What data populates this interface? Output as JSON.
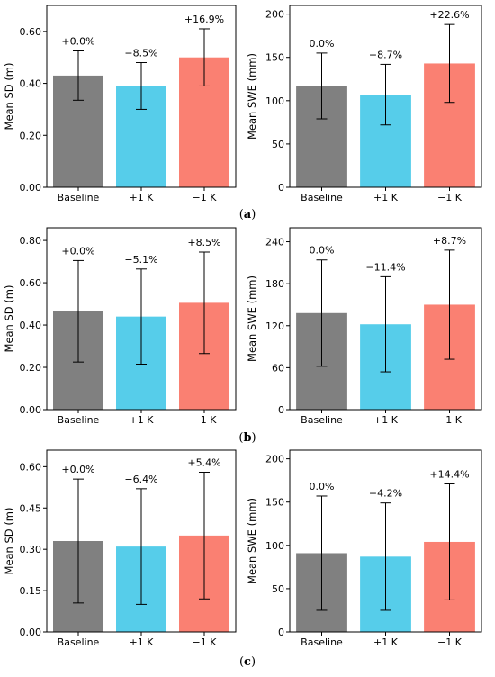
{
  "colors": {
    "baseline": "#808080",
    "plus1k": "#56cdea",
    "minus1k": "#fa8072"
  },
  "panel_labels": [
    {
      "open": "(",
      "letter": "a",
      "close": ")"
    },
    {
      "open": "(",
      "letter": "b",
      "close": ")"
    },
    {
      "open": "(",
      "letter": "c",
      "close": ")"
    }
  ],
  "chart_data": [
    {
      "type": "bar",
      "ylabel": "Mean SD (m)",
      "categories": [
        "Baseline",
        "+1 K",
        "−1 K"
      ],
      "values": [
        0.43,
        0.39,
        0.5
      ],
      "errors": [
        0.095,
        0.09,
        0.11
      ],
      "annotations": [
        "+0.0%",
        "−8.5%",
        "+16.9%"
      ],
      "ylim": [
        0,
        0.7
      ],
      "yticks": [
        0,
        0.2,
        0.4,
        0.6
      ],
      "ytick_labels": [
        "0.00",
        "0.20",
        "0.40",
        "0.60"
      ]
    },
    {
      "type": "bar",
      "ylabel": "Mean SWE (mm)",
      "categories": [
        "Baseline",
        "+1 K",
        "−1 K"
      ],
      "values": [
        117,
        107,
        143
      ],
      "errors": [
        38,
        35,
        45
      ],
      "annotations": [
        "0.0%",
        "−8.7%",
        "+22.6%"
      ],
      "ylim": [
        0,
        210
      ],
      "yticks": [
        0,
        50,
        100,
        150,
        200
      ],
      "ytick_labels": [
        "0",
        "50",
        "100",
        "150",
        "200"
      ]
    },
    {
      "type": "bar",
      "ylabel": "Mean SD (m)",
      "categories": [
        "Baseline",
        "+1 K",
        "−1 K"
      ],
      "values": [
        0.465,
        0.44,
        0.505
      ],
      "errors": [
        0.24,
        0.225,
        0.24
      ],
      "annotations": [
        "+0.0%",
        "−5.1%",
        "+8.5%"
      ],
      "ylim": [
        0,
        0.86
      ],
      "yticks": [
        0,
        0.2,
        0.4,
        0.6,
        0.8
      ],
      "ytick_labels": [
        "0.00",
        "0.20",
        "0.40",
        "0.60",
        "0.80"
      ]
    },
    {
      "type": "bar",
      "ylabel": "Mean SWE (mm)",
      "categories": [
        "Baseline",
        "+1 K",
        "−1 K"
      ],
      "values": [
        138,
        122,
        150
      ],
      "errors": [
        76,
        68,
        78
      ],
      "annotations": [
        "0.0%",
        "−11.4%",
        "+8.7%"
      ],
      "ylim": [
        0,
        260
      ],
      "yticks": [
        0,
        60,
        120,
        180,
        240
      ],
      "ytick_labels": [
        "0",
        "60",
        "120",
        "180",
        "240"
      ]
    },
    {
      "type": "bar",
      "ylabel": "Mean SD (m)",
      "categories": [
        "Baseline",
        "+1 K",
        "−1 K"
      ],
      "values": [
        0.33,
        0.31,
        0.35
      ],
      "errors": [
        0.225,
        0.21,
        0.23
      ],
      "annotations": [
        "+0.0%",
        "−6.4%",
        "+5.4%"
      ],
      "ylim": [
        0,
        0.66
      ],
      "yticks": [
        0,
        0.15,
        0.3,
        0.45,
        0.6
      ],
      "ytick_labels": [
        "0.00",
        "0.15",
        "0.30",
        "0.45",
        "0.60"
      ]
    },
    {
      "type": "bar",
      "ylabel": "Mean SWE (mm)",
      "categories": [
        "Baseline",
        "+1 K",
        "−1 K"
      ],
      "values": [
        91,
        87,
        104
      ],
      "errors": [
        66,
        62,
        67
      ],
      "annotations": [
        "0.0%",
        "−4.2%",
        "+14.4%"
      ],
      "ylim": [
        0,
        210
      ],
      "yticks": [
        0,
        50,
        100,
        150,
        200
      ],
      "ytick_labels": [
        "0",
        "50",
        "100",
        "150",
        "200"
      ]
    }
  ]
}
